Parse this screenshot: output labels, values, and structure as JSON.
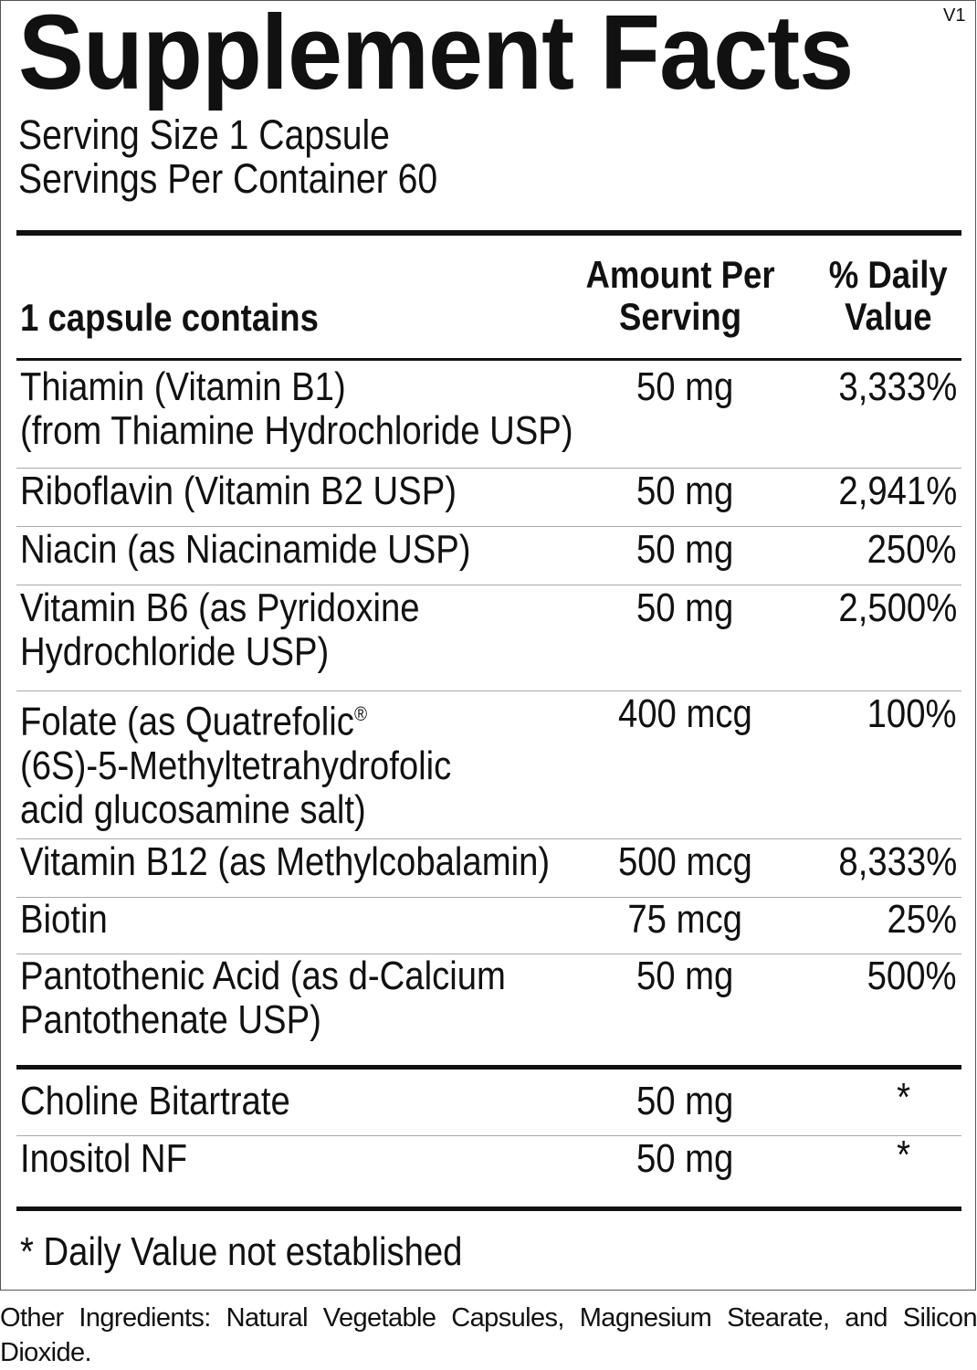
{
  "title": "Supplement Facts",
  "version": "V1",
  "serving_size": "Serving Size 1 Capsule",
  "servings_per_container": "Servings Per Container 60",
  "header": {
    "contains": "1 capsule contains",
    "amount_line1": "Amount Per",
    "amount_line2": "Serving",
    "dv_line1": "% Daily",
    "dv_line2": "Value"
  },
  "rows": [
    {
      "name": [
        "Thiamin (Vitamin B1)",
        "(from Thiamine Hydrochloride USP)"
      ],
      "amount": "50 mg",
      "dv": "3,333%"
    },
    {
      "name": [
        "Riboflavin (Vitamin B2 USP)"
      ],
      "amount": "50 mg",
      "dv": "2,941%"
    },
    {
      "name": [
        "Niacin (as Niacinamide USP)"
      ],
      "amount": "50 mg",
      "dv": "250%"
    },
    {
      "name": [
        "Vitamin B6 (as Pyridoxine",
        "Hydrochloride USP)"
      ],
      "amount": "50 mg",
      "dv": "2,500%"
    },
    {
      "name": [
        "Folate (as Quatrefolic",
        "(6S)-5-Methyltetrahydrofolic",
        "acid glucosamine salt)"
      ],
      "registered": "®",
      "amount": "400 mcg",
      "dv": "100%"
    },
    {
      "name": [
        "Vitamin B12 (as Methylcobalamin)"
      ],
      "amount": "500 mcg",
      "dv": "8,333%"
    },
    {
      "name": [
        "Biotin"
      ],
      "amount": "75 mcg",
      "dv": "25%"
    },
    {
      "name": [
        "Pantothenic Acid (as d-Calcium",
        "Pantothenate USP)"
      ],
      "amount": "50 mg",
      "dv": "500%"
    },
    {
      "name": [
        "Choline Bitartrate"
      ],
      "amount": "50 mg",
      "dv": "*"
    },
    {
      "name": [
        "Inositol NF"
      ],
      "amount": "50 mg",
      "dv": "*"
    }
  ],
  "footnote": "* Daily Value not established",
  "other_ingredients": "Other Ingredients: Natural Vegetable Capsules, Magnesium Stearate, and Silicon Dioxide."
}
